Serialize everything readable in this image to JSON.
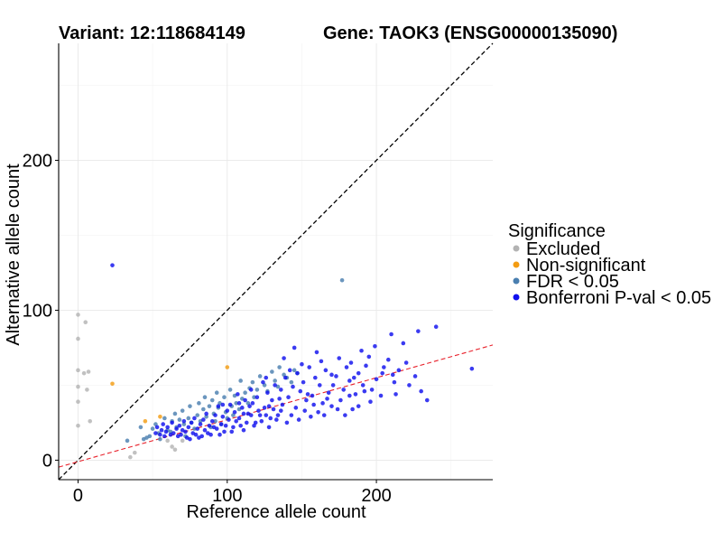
{
  "chart_data": {
    "type": "scatter",
    "title_left": "Variant: 12:118684149",
    "title_right": "Gene: TAOK3 (ENSG00000135090)",
    "xlabel": "Reference allele count",
    "ylabel": "Alternative allele count",
    "xlim": [
      -13,
      278
    ],
    "ylim": [
      -13,
      278
    ],
    "x_ticks": [
      0,
      100,
      200
    ],
    "y_ticks": [
      0,
      100,
      200
    ],
    "grid": true,
    "legend": {
      "title": "Significance",
      "position": "right",
      "entries": [
        {
          "label": "Excluded",
          "color": "#b3b3b3"
        },
        {
          "label": "Non-significant",
          "color": "#f39c12"
        },
        {
          "label": "FDR < 0.05",
          "color": "#4a7fb0"
        },
        {
          "label": "Bonferroni P-val < 0.05",
          "color": "#1010ee"
        }
      ]
    },
    "reference_lines": [
      {
        "name": "identity",
        "slope": 1,
        "intercept": 0,
        "color": "#000000",
        "style": "dashed"
      },
      {
        "name": "fit",
        "slope": 0.28,
        "intercept": -1,
        "color": "#e8212b",
        "style": "dashed"
      }
    ],
    "series": [
      {
        "name": "Excluded",
        "color": "#b3b3b3",
        "points": [
          [
            0,
            97
          ],
          [
            0,
            81
          ],
          [
            0,
            60
          ],
          [
            0,
            49
          ],
          [
            0,
            39
          ],
          [
            0,
            23
          ],
          [
            4,
            58
          ],
          [
            5,
            92
          ],
          [
            6,
            47
          ],
          [
            7,
            59
          ],
          [
            8,
            26
          ],
          [
            35,
            2
          ],
          [
            38,
            5
          ],
          [
            60,
            13
          ],
          [
            63,
            9
          ],
          [
            65,
            7
          ],
          [
            70,
            13
          ]
        ]
      },
      {
        "name": "Non-significant",
        "color": "#f39c12",
        "points": [
          [
            23,
            51
          ],
          [
            45,
            26
          ],
          [
            55,
            29
          ],
          [
            100,
            62
          ]
        ]
      },
      {
        "name": "FDR < 0.05",
        "color": "#4a7fb0",
        "points": [
          [
            177,
            120
          ],
          [
            33,
            13
          ],
          [
            42,
            22
          ],
          [
            44,
            14
          ],
          [
            46,
            15
          ],
          [
            48,
            16
          ],
          [
            50,
            21
          ],
          [
            52,
            24
          ],
          [
            54,
            18
          ],
          [
            55,
            14
          ],
          [
            58,
            28
          ],
          [
            60,
            20
          ],
          [
            62,
            19
          ],
          [
            63,
            26
          ],
          [
            65,
            31
          ],
          [
            66,
            22
          ],
          [
            68,
            27
          ],
          [
            70,
            33
          ],
          [
            71,
            24
          ],
          [
            72,
            16
          ],
          [
            74,
            28
          ],
          [
            75,
            36
          ],
          [
            76,
            25
          ],
          [
            78,
            21
          ],
          [
            80,
            30
          ],
          [
            81,
            38
          ],
          [
            82,
            26
          ],
          [
            84,
            34
          ],
          [
            85,
            42
          ],
          [
            86,
            29
          ],
          [
            88,
            36
          ],
          [
            89,
            22
          ],
          [
            90,
            40
          ],
          [
            91,
            31
          ],
          [
            92,
            26
          ],
          [
            93,
            45
          ],
          [
            94,
            35
          ],
          [
            95,
            38
          ],
          [
            96,
            24
          ],
          [
            98,
            42
          ],
          [
            99,
            32
          ],
          [
            100,
            28
          ],
          [
            102,
            47
          ],
          [
            103,
            36
          ],
          [
            104,
            30
          ],
          [
            105,
            43
          ],
          [
            106,
            38
          ],
          [
            108,
            34
          ],
          [
            109,
            53
          ],
          [
            110,
            41
          ],
          [
            112,
            45
          ],
          [
            114,
            38
          ],
          [
            115,
            48
          ],
          [
            117,
            52
          ],
          [
            118,
            42
          ],
          [
            120,
            47
          ],
          [
            122,
            56
          ],
          [
            125,
            50
          ],
          [
            127,
            46
          ],
          [
            130,
            59
          ],
          [
            132,
            53
          ],
          [
            134,
            49
          ],
          [
            135,
            62
          ],
          [
            138,
            57
          ],
          [
            140,
            55
          ],
          [
            143,
            52
          ],
          [
            145,
            60
          ],
          [
            147,
            58
          ]
        ]
      },
      {
        "name": "Bonferroni P-val < 0.05",
        "color": "#1010ee",
        "points": [
          [
            23,
            130
          ],
          [
            264,
            61
          ],
          [
            240,
            89
          ],
          [
            228,
            86
          ],
          [
            218,
            78
          ],
          [
            210,
            84
          ],
          [
            205,
            62
          ],
          [
            199,
            76
          ],
          [
            195,
            69
          ],
          [
            190,
            73
          ],
          [
            185,
            55
          ],
          [
            175,
            68
          ],
          [
            170,
            57
          ],
          [
            160,
            72
          ],
          [
            150,
            64
          ],
          [
            145,
            75
          ],
          [
            142,
            60
          ],
          [
            138,
            68
          ],
          [
            226,
            56
          ],
          [
            222,
            50
          ],
          [
            220,
            65
          ],
          [
            215,
            60
          ],
          [
            212,
            52
          ],
          [
            208,
            67
          ],
          [
            204,
            58
          ],
          [
            200,
            54
          ],
          [
            197,
            47
          ],
          [
            193,
            63
          ],
          [
            191,
            50
          ],
          [
            188,
            58
          ],
          [
            186,
            44
          ],
          [
            182,
            53
          ],
          [
            180,
            62
          ],
          [
            178,
            47
          ],
          [
            176,
            40
          ],
          [
            173,
            56
          ],
          [
            171,
            50
          ],
          [
            168,
            45
          ],
          [
            166,
            60
          ],
          [
            164,
            38
          ],
          [
            162,
            50
          ],
          [
            159,
            55
          ],
          [
            157,
            43
          ],
          [
            155,
            62
          ],
          [
            153,
            40
          ],
          [
            151,
            52
          ],
          [
            149,
            46
          ],
          [
            147,
            58
          ],
          [
            146,
            35
          ],
          [
            144,
            49
          ],
          [
            141,
            42
          ],
          [
            139,
            55
          ],
          [
            137,
            37
          ],
          [
            136,
            47
          ],
          [
            134,
            30
          ],
          [
            132,
            50
          ],
          [
            130,
            40
          ],
          [
            129,
            28
          ],
          [
            127,
            45
          ],
          [
            125,
            35
          ],
          [
            124,
            52
          ],
          [
            122,
            30
          ],
          [
            120,
            42
          ],
          [
            119,
            25
          ],
          [
            117,
            38
          ],
          [
            116,
            47
          ],
          [
            114,
            31
          ],
          [
            112,
            40
          ],
          [
            111,
            20
          ],
          [
            110,
            35
          ],
          [
            108,
            28
          ],
          [
            107,
            44
          ],
          [
            105,
            32
          ],
          [
            104,
            22
          ],
          [
            102,
            37
          ],
          [
            101,
            27
          ],
          [
            100,
            33
          ],
          [
            98,
            19
          ],
          [
            97,
            29
          ],
          [
            96,
            24
          ],
          [
            94,
            36
          ],
          [
            93,
            21
          ],
          [
            92,
            30
          ],
          [
            90,
            26
          ],
          [
            89,
            17
          ],
          [
            88,
            23
          ],
          [
            86,
            31
          ],
          [
            85,
            20
          ],
          [
            84,
            27
          ],
          [
            82,
            24
          ],
          [
            81,
            15
          ],
          [
            80,
            21
          ],
          [
            78,
            28
          ],
          [
            77,
            18
          ],
          [
            76,
            25
          ],
          [
            75,
            14
          ],
          [
            74,
            22
          ],
          [
            72,
            19
          ],
          [
            71,
            26
          ],
          [
            70,
            20
          ],
          [
            68,
            23
          ],
          [
            67,
            16
          ],
          [
            66,
            21
          ],
          [
            64,
            18
          ],
          [
            63,
            25
          ],
          [
            62,
            17
          ],
          [
            60,
            22
          ],
          [
            59,
            19
          ],
          [
            58,
            16
          ],
          [
            57,
            24
          ],
          [
            56,
            20
          ],
          [
            55,
            17
          ],
          [
            53,
            22
          ],
          [
            52,
            18
          ],
          [
            196,
            39
          ],
          [
            188,
            36
          ],
          [
            182,
            43
          ],
          [
            174,
            34
          ],
          [
            167,
            41
          ],
          [
            161,
            32
          ],
          [
            156,
            29
          ],
          [
            152,
            33
          ],
          [
            148,
            27
          ],
          [
            143,
            30
          ],
          [
            140,
            25
          ],
          [
            136,
            33
          ],
          [
            133,
            27
          ],
          [
            131,
            34
          ],
          [
            128,
            22
          ],
          [
            126,
            30
          ],
          [
            123,
            26
          ],
          [
            121,
            33
          ],
          [
            118,
            23
          ],
          [
            116,
            30
          ],
          [
            113,
            25
          ],
          [
            111,
            31
          ],
          [
            109,
            23
          ],
          [
            106,
            26
          ],
          [
            103,
            19
          ],
          [
            99,
            23
          ],
          [
            95,
            17
          ],
          [
            91,
            22
          ],
          [
            87,
            18
          ],
          [
            83,
            16
          ],
          [
            79,
            17
          ],
          [
            73,
            15
          ],
          [
            69,
            17
          ],
          [
            203,
            43
          ],
          [
            213,
            44
          ],
          [
            230,
            46
          ],
          [
            234,
            40
          ],
          [
            170,
            36
          ],
          [
            179,
            30
          ],
          [
            184,
            34
          ],
          [
            158,
            37
          ],
          [
            154,
            44
          ],
          [
            135,
            41
          ],
          [
            128,
            36
          ],
          [
            165,
            30
          ],
          [
            192,
            46
          ],
          [
            211,
            57
          ],
          [
            183,
            65
          ],
          [
            163,
            66
          ],
          [
            126,
            55
          ],
          [
            115,
            36
          ],
          [
            108,
            38
          ],
          [
            97,
            37
          ]
        ]
      }
    ]
  }
}
